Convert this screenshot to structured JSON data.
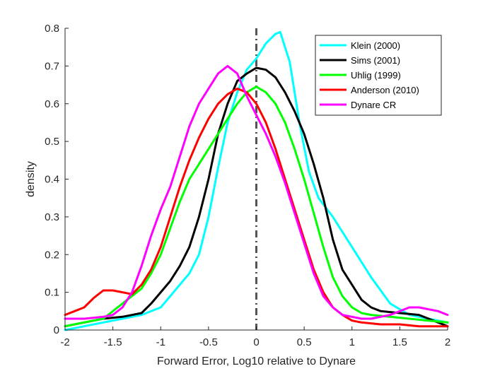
{
  "chart_data": {
    "type": "line",
    "xlabel": "Forward Error, Log10 relative to Dynare",
    "ylabel": "density",
    "xlim": [
      -2,
      2
    ],
    "ylim": [
      0,
      0.8
    ],
    "xticks": [
      -2,
      -1.5,
      -1,
      -0.5,
      0,
      0.5,
      1,
      1.5,
      2
    ],
    "xtick_labels": [
      "-2",
      "-1.5",
      "-1",
      "-0.5",
      "0",
      "0.5",
      "1",
      "1.5",
      "2"
    ],
    "yticks": [
      0,
      0.1,
      0.2,
      0.3,
      0.4,
      0.5,
      0.6,
      0.7,
      0.8
    ],
    "ytick_labels": [
      "0",
      "0.1",
      "0.2",
      "0.3",
      "0.4",
      "0.5",
      "0.6",
      "0.7",
      "0.8"
    ],
    "grid": false,
    "legend_position": "top-right",
    "reference_line": {
      "x": 0,
      "style": "dash-dot",
      "color": "#555555"
    },
    "series": [
      {
        "name": "Klein (2000)",
        "color": "#00FFFF",
        "x": [
          -2,
          -1.8,
          -1.6,
          -1.4,
          -1.2,
          -1.0,
          -0.9,
          -0.8,
          -0.7,
          -0.6,
          -0.5,
          -0.4,
          -0.3,
          -0.2,
          -0.1,
          0.0,
          0.1,
          0.2,
          0.25,
          0.35,
          0.45,
          0.55,
          0.65,
          0.8,
          1.0,
          1.2,
          1.4,
          1.6,
          1.8,
          2.0
        ],
        "values": [
          0.0,
          0.01,
          0.02,
          0.03,
          0.04,
          0.06,
          0.09,
          0.12,
          0.15,
          0.2,
          0.3,
          0.43,
          0.55,
          0.63,
          0.69,
          0.72,
          0.76,
          0.785,
          0.79,
          0.71,
          0.55,
          0.42,
          0.35,
          0.3,
          0.22,
          0.14,
          0.07,
          0.04,
          0.03,
          0.02
        ]
      },
      {
        "name": "Sims (2001)",
        "color": "#000000",
        "x": [
          -2,
          -1.8,
          -1.6,
          -1.4,
          -1.2,
          -1.1,
          -1.0,
          -0.9,
          -0.8,
          -0.7,
          -0.6,
          -0.5,
          -0.4,
          -0.3,
          -0.2,
          -0.1,
          0.0,
          0.1,
          0.2,
          0.3,
          0.4,
          0.5,
          0.6,
          0.7,
          0.8,
          0.9,
          1.0,
          1.1,
          1.2,
          1.3,
          1.5,
          1.7,
          1.9,
          2.0
        ],
        "values": [
          0.01,
          0.02,
          0.03,
          0.035,
          0.045,
          0.07,
          0.1,
          0.13,
          0.17,
          0.22,
          0.3,
          0.4,
          0.52,
          0.6,
          0.66,
          0.68,
          0.695,
          0.69,
          0.67,
          0.63,
          0.58,
          0.52,
          0.44,
          0.35,
          0.24,
          0.16,
          0.12,
          0.08,
          0.06,
          0.05,
          0.045,
          0.04,
          0.02,
          0.01
        ]
      },
      {
        "name": "Uhlig (1999)",
        "color": "#00FF00",
        "x": [
          -2,
          -1.8,
          -1.6,
          -1.4,
          -1.2,
          -1.1,
          -1.0,
          -0.9,
          -0.8,
          -0.7,
          -0.6,
          -0.5,
          -0.4,
          -0.3,
          -0.2,
          -0.1,
          0.0,
          0.1,
          0.2,
          0.3,
          0.4,
          0.5,
          0.6,
          0.7,
          0.8,
          0.9,
          1.0,
          1.1,
          1.2,
          1.4,
          1.6,
          1.8,
          2.0
        ],
        "values": [
          0.01,
          0.02,
          0.03,
          0.07,
          0.11,
          0.15,
          0.2,
          0.27,
          0.34,
          0.4,
          0.44,
          0.48,
          0.52,
          0.56,
          0.6,
          0.63,
          0.645,
          0.63,
          0.6,
          0.55,
          0.48,
          0.4,
          0.31,
          0.22,
          0.14,
          0.09,
          0.06,
          0.045,
          0.04,
          0.035,
          0.03,
          0.025,
          0.02
        ]
      },
      {
        "name": "Anderson (2010)",
        "color": "#FF0000",
        "x": [
          -2,
          -1.9,
          -1.8,
          -1.7,
          -1.6,
          -1.5,
          -1.4,
          -1.3,
          -1.2,
          -1.1,
          -1.0,
          -0.9,
          -0.8,
          -0.7,
          -0.6,
          -0.5,
          -0.4,
          -0.3,
          -0.2,
          -0.1,
          0.0,
          0.1,
          0.2,
          0.3,
          0.4,
          0.5,
          0.6,
          0.7,
          0.8,
          0.9,
          1.0,
          1.1,
          1.3,
          1.5,
          1.7,
          2.0
        ],
        "values": [
          0.04,
          0.05,
          0.06,
          0.085,
          0.105,
          0.105,
          0.1,
          0.095,
          0.12,
          0.16,
          0.22,
          0.3,
          0.38,
          0.45,
          0.51,
          0.56,
          0.6,
          0.625,
          0.64,
          0.63,
          0.6,
          0.55,
          0.48,
          0.4,
          0.32,
          0.24,
          0.16,
          0.1,
          0.06,
          0.04,
          0.025,
          0.02,
          0.015,
          0.015,
          0.01,
          0.01
        ]
      },
      {
        "name": "Dynare CR",
        "color": "#FF00FF",
        "x": [
          -2,
          -1.8,
          -1.6,
          -1.5,
          -1.4,
          -1.3,
          -1.2,
          -1.1,
          -1.0,
          -0.9,
          -0.8,
          -0.7,
          -0.6,
          -0.5,
          -0.4,
          -0.3,
          -0.2,
          -0.1,
          0.0,
          0.1,
          0.2,
          0.3,
          0.4,
          0.5,
          0.6,
          0.7,
          0.8,
          0.9,
          1.0,
          1.1,
          1.2,
          1.3,
          1.4,
          1.5,
          1.6,
          1.7,
          1.8,
          1.9,
          2.0
        ],
        "values": [
          0.03,
          0.03,
          0.035,
          0.04,
          0.06,
          0.1,
          0.17,
          0.25,
          0.32,
          0.38,
          0.46,
          0.54,
          0.6,
          0.64,
          0.68,
          0.7,
          0.68,
          0.62,
          0.57,
          0.52,
          0.46,
          0.39,
          0.31,
          0.23,
          0.15,
          0.09,
          0.06,
          0.04,
          0.035,
          0.03,
          0.03,
          0.035,
          0.04,
          0.05,
          0.06,
          0.06,
          0.055,
          0.05,
          0.04
        ]
      }
    ]
  }
}
